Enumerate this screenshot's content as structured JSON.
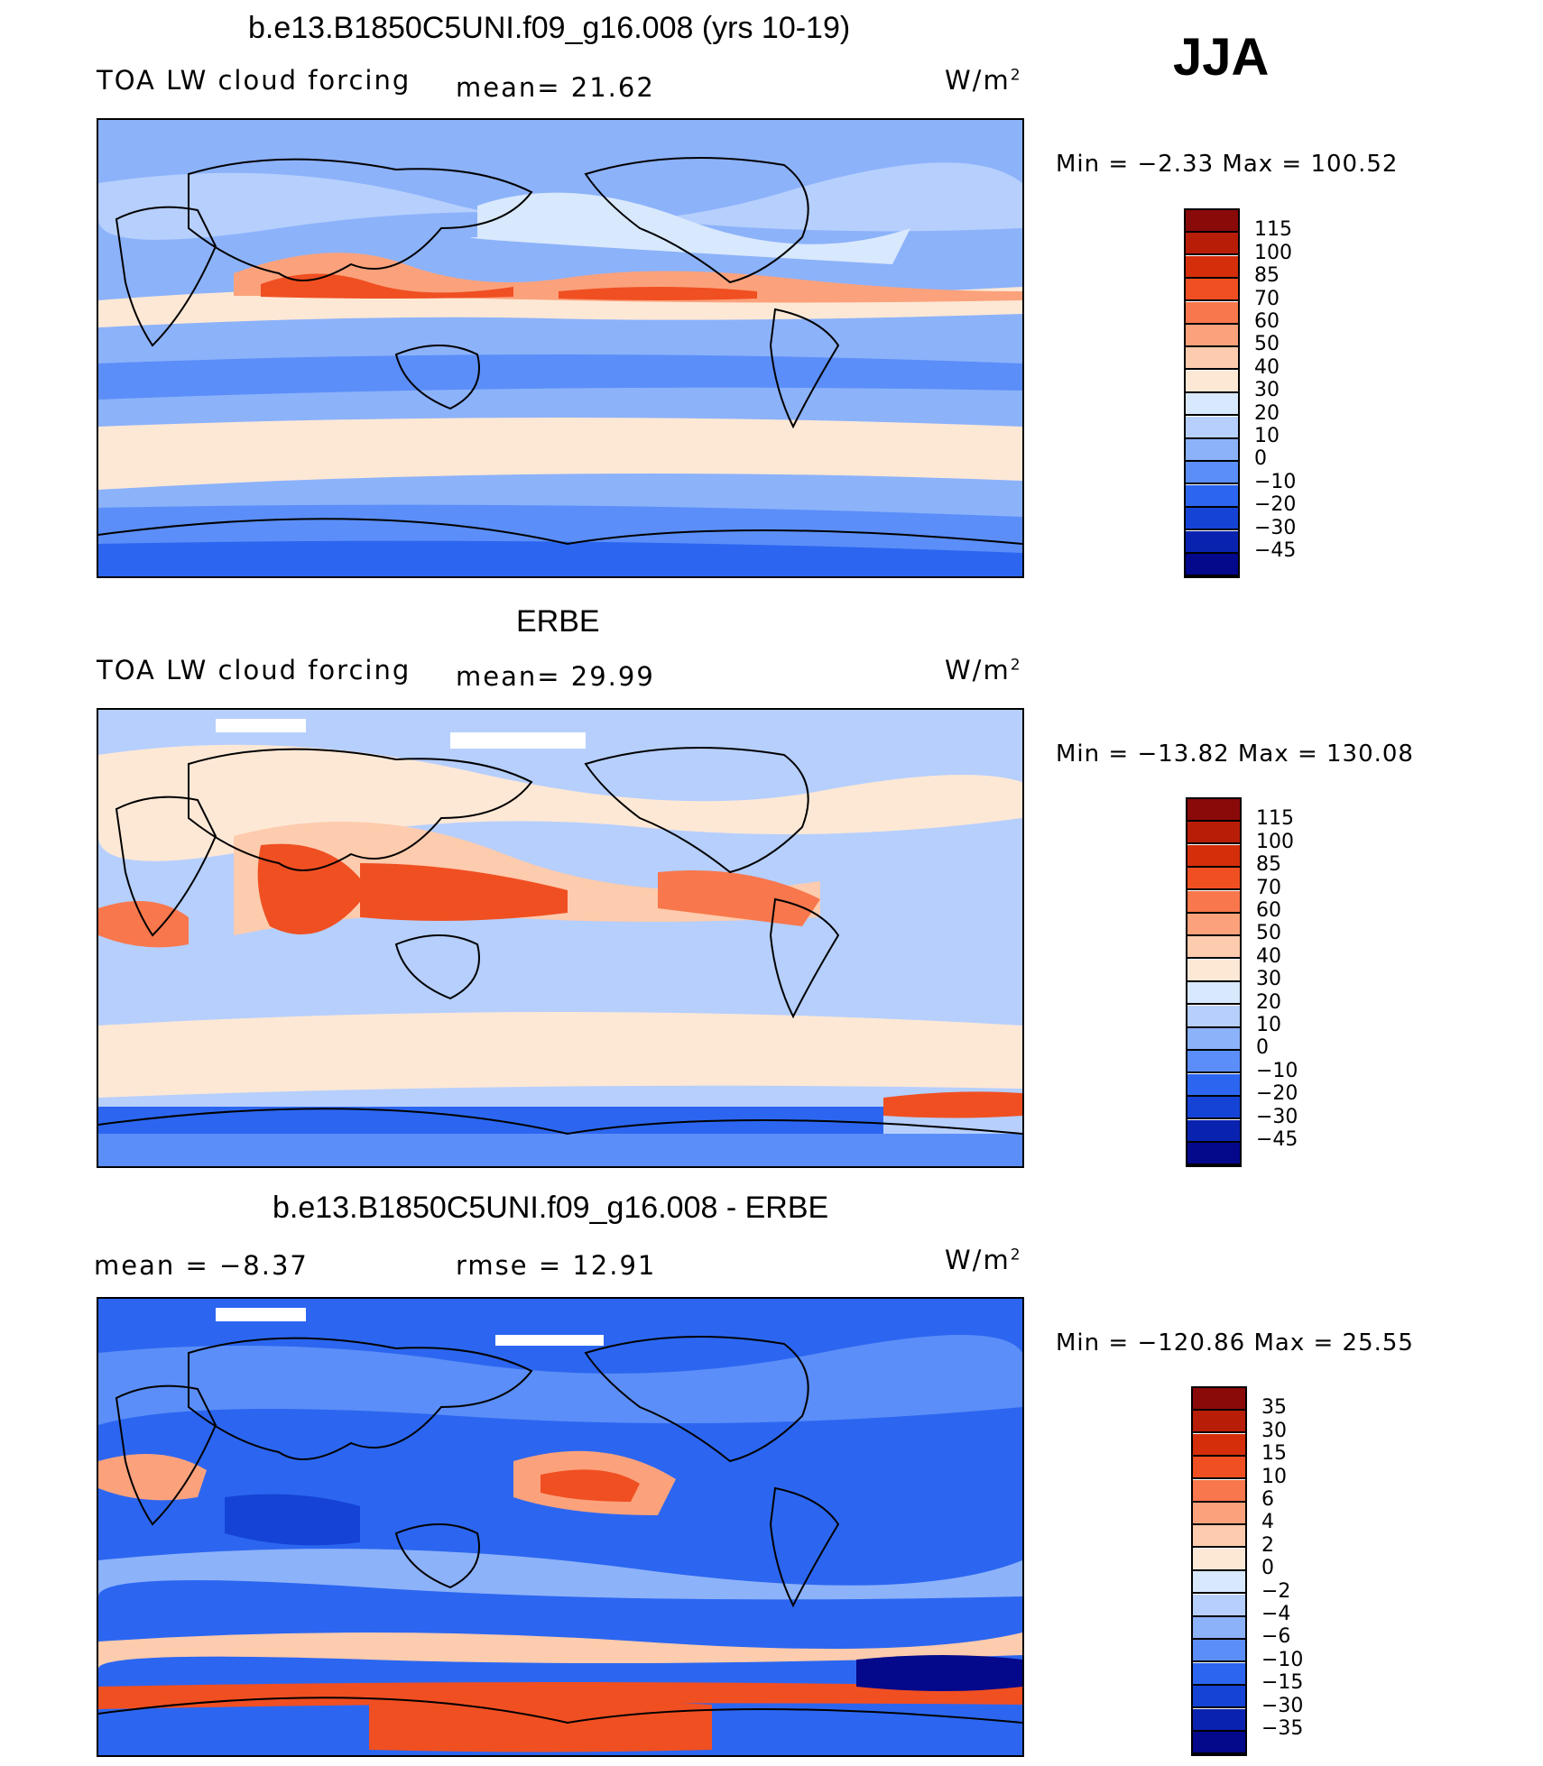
{
  "season": "JJA",
  "colors": {
    "abs_scale": [
      "#04088a",
      "#0a22b0",
      "#1443d5",
      "#2c66f0",
      "#5b8ef8",
      "#8cb2fa",
      "#b6cffd",
      "#d8e8fd",
      "#fde8d6",
      "#fdcbad",
      "#fba27c",
      "#f8774c",
      "#f04f22",
      "#d52e0a",
      "#b81d08",
      "#8a0a0a"
    ],
    "diff_scale": [
      "#04088a",
      "#0a22b0",
      "#1443d5",
      "#2c66f0",
      "#5b8ef8",
      "#8cb2fa",
      "#b6cffd",
      "#d8e8fd",
      "#fde8d6",
      "#fdcbad",
      "#fba27c",
      "#f8774c",
      "#f04f22",
      "#d52e0a",
      "#b81d08",
      "#8a0a0a"
    ]
  },
  "panels": [
    {
      "title": "b.e13.B1850C5UNI.f09_g16.008 (yrs 10-19)",
      "left_label": "TOA LW cloud forcing",
      "mid_label": "mean=   21.62",
      "units_label": "W/m",
      "units_sup": "2",
      "minmax": "Min =   −2.33 Max = 100.52",
      "colorbar_ticks": [
        "115",
        "100",
        "85",
        "70",
        "60",
        "50",
        "40",
        "30",
        "20",
        "10",
        "0",
        "−10",
        "−20",
        "−30",
        "−45"
      ]
    },
    {
      "title": "ERBE",
      "left_label": "TOA LW cloud forcing",
      "mid_label": "mean=   29.99",
      "units_label": "W/m",
      "units_sup": "2",
      "minmax": "Min = −13.82 Max = 130.08",
      "colorbar_ticks": [
        "115",
        "100",
        "85",
        "70",
        "60",
        "50",
        "40",
        "30",
        "20",
        "10",
        "0",
        "−10",
        "−20",
        "−30",
        "−45"
      ]
    },
    {
      "title": "b.e13.B1850C5UNI.f09_g16.008 - ERBE",
      "left_label": "mean =   −8.37",
      "mid_label": "rmse =   12.91",
      "units_label": "W/m",
      "units_sup": "2",
      "minmax": "Min = −120.86 Max =   25.55",
      "colorbar_ticks": [
        "35",
        "30",
        "15",
        "10",
        "6",
        "4",
        "2",
        "0",
        "−2",
        "−4",
        "−6",
        "−10",
        "−15",
        "−30",
        "−35"
      ]
    }
  ]
}
